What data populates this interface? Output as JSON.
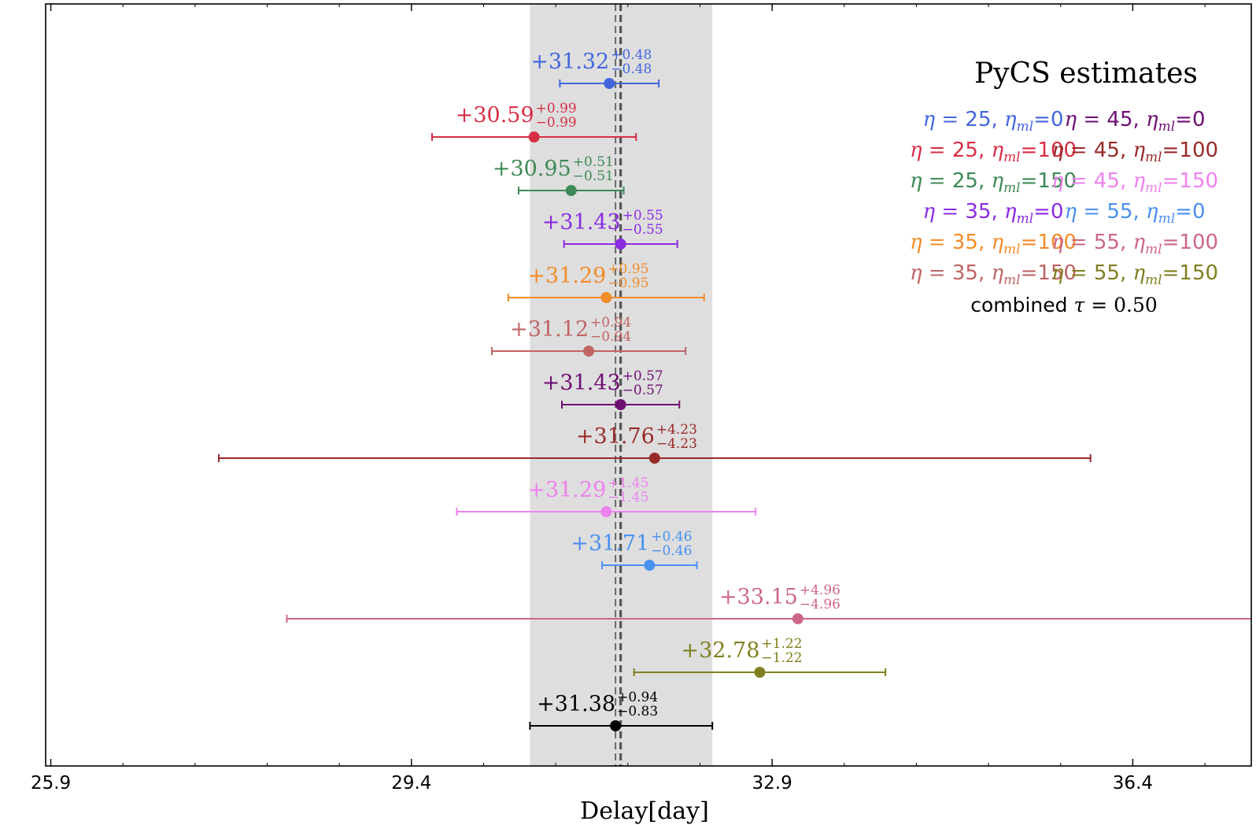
{
  "chart_data": {
    "type": "scatter",
    "subtype": "horizontal-errorbar",
    "xlabel": "Delay[day]",
    "xlim": [
      25.85,
      37.55
    ],
    "x_ticks": [
      "25.9",
      "29.4",
      "32.9",
      "36.4"
    ],
    "x_tick_values": [
      25.9,
      29.4,
      32.9,
      36.4
    ],
    "shaded_band": {
      "x_start": 30.55,
      "x_end": 32.32,
      "color": "#dedede"
    },
    "reference_lines": [
      {
        "x": 31.38,
        "style": "dashed",
        "color": "#6b6b6b"
      },
      {
        "x": 31.43,
        "style": "dashed",
        "color": "#555555"
      }
    ],
    "legend_title": "PyCS estimates",
    "legend_position": "top-right",
    "series": [
      {
        "legend": "η = 25, ηml = 0",
        "value": 31.32,
        "plus": 0.48,
        "minus": 0.48,
        "label": "+31.32",
        "label_plus": "+0.48",
        "label_minus": "−0.48",
        "color": "#4466dd"
      },
      {
        "legend": "η = 25, ηml = 100",
        "value": 30.59,
        "plus": 0.99,
        "minus": 0.99,
        "label": "+30.59",
        "label_plus": "+0.99",
        "label_minus": "−0.99",
        "color": "#d72e45"
      },
      {
        "legend": "η = 25, ηml = 150",
        "value": 30.95,
        "plus": 0.51,
        "minus": 0.51,
        "label": "+30.95",
        "label_plus": "+0.51",
        "label_minus": "−0.51",
        "color": "#3d8a55"
      },
      {
        "legend": "η = 35, ηml = 0",
        "value": 31.43,
        "plus": 0.55,
        "minus": 0.55,
        "label": "+31.43",
        "label_plus": "+0.55",
        "label_minus": "−0.55",
        "color": "#8a2be2"
      },
      {
        "legend": "η = 35, ηml = 100",
        "value": 31.29,
        "plus": 0.95,
        "minus": 0.95,
        "label": "+31.29",
        "label_plus": "+0.95",
        "label_minus": "−0.95",
        "color": "#f28c28"
      },
      {
        "legend": "η = 35, ηml = 150",
        "value": 31.12,
        "plus": 0.94,
        "minus": 0.94,
        "label": "+31.12",
        "label_plus": "+0.94",
        "label_minus": "−0.94",
        "color": "#c06464"
      },
      {
        "legend": "η = 45, ηml = 0",
        "value": 31.43,
        "plus": 0.57,
        "minus": 0.57,
        "label": "+31.43",
        "label_plus": "+0.57",
        "label_minus": "−0.57",
        "color": "#6e0f73"
      },
      {
        "legend": "η = 45, ηml = 100",
        "value": 31.76,
        "plus": 4.23,
        "minus": 4.23,
        "label": "+31.76",
        "label_plus": "+4.23",
        "label_minus": "−4.23",
        "color": "#992a2a"
      },
      {
        "legend": "η = 45, ηml = 150",
        "value": 31.29,
        "plus": 1.45,
        "minus": 1.45,
        "label": "+31.29",
        "label_plus": "+1.45",
        "label_minus": "−1.45",
        "color": "#ee82ee"
      },
      {
        "legend": "η = 55, ηml = 0",
        "value": 31.71,
        "plus": 0.46,
        "minus": 0.46,
        "label": "+31.71",
        "label_plus": "+0.46",
        "label_minus": "−0.46",
        "color": "#4a90f0"
      },
      {
        "legend": "η = 55, ηml = 100",
        "value": 33.15,
        "plus": 4.96,
        "minus": 4.96,
        "label": "+33.15",
        "label_plus": "+4.96",
        "label_minus": "−4.96",
        "color": "#cc6688"
      },
      {
        "legend": "η = 55, ηml = 150",
        "value": 32.78,
        "plus": 1.22,
        "minus": 1.22,
        "label": "+32.78",
        "label_plus": "+1.22",
        "label_minus": "−1.22",
        "color": "#808020"
      },
      {
        "legend": "combined τ = 0.50",
        "value": 31.38,
        "plus": 0.94,
        "minus": 0.83,
        "label": "+31.38",
        "label_plus": "+0.94",
        "label_minus": "−0.83",
        "color": "#000000"
      }
    ],
    "legend_entries": [
      {
        "eta": "25",
        "ml": "0",
        "color": "#4466dd"
      },
      {
        "eta": "45",
        "ml": "0",
        "color": "#6e0f73"
      },
      {
        "eta": "25",
        "ml": "100",
        "color": "#d72e45"
      },
      {
        "eta": "45",
        "ml": "100",
        "color": "#992a2a"
      },
      {
        "eta": "25",
        "ml": "150",
        "color": "#3d8a55"
      },
      {
        "eta": "45",
        "ml": "150",
        "color": "#ee82ee"
      },
      {
        "eta": "35",
        "ml": "0",
        "color": "#8a2be2"
      },
      {
        "eta": "55",
        "ml": "0",
        "color": "#4a90f0"
      },
      {
        "eta": "35",
        "ml": "100",
        "color": "#f28c28"
      },
      {
        "eta": "55",
        "ml": "100",
        "color": "#cc6688"
      },
      {
        "eta": "35",
        "ml": "150",
        "color": "#c06464"
      },
      {
        "eta": "55",
        "ml": "150",
        "color": "#808020"
      }
    ],
    "legend_combined": {
      "word": "combined",
      "symbol": "τ",
      "value": "0.50"
    },
    "grid": false
  }
}
